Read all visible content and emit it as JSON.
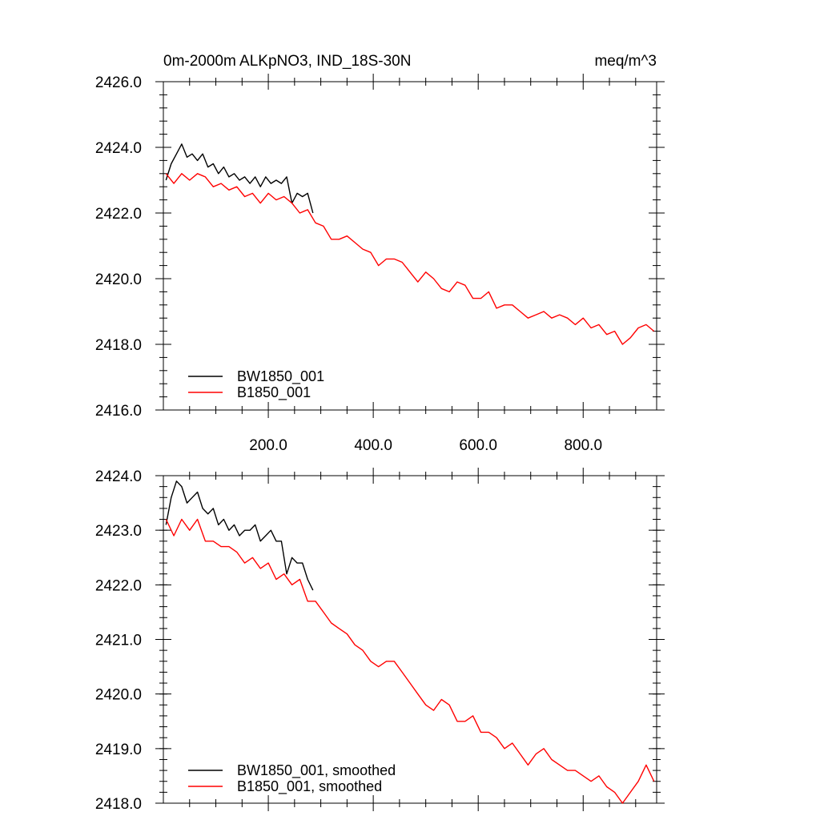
{
  "chart_data": [
    {
      "type": "line",
      "title": "0m-2000m ALKpNO3, IND_18S-30N",
      "units": "meq/m^3",
      "xlim": [
        0,
        940
      ],
      "ylim": [
        2416,
        2426
      ],
      "xticks": [
        200,
        400,
        600,
        800
      ],
      "xtick_labels": [
        "200.0",
        "400.0",
        "600.0",
        "800.0"
      ],
      "yticks": [
        2416,
        2418,
        2420,
        2422,
        2424,
        2426
      ],
      "ytick_labels": [
        "2416.0",
        "2418.0",
        "2420.0",
        "2422.0",
        "2424.0",
        "2426.0"
      ],
      "legend_position": "bottom-left",
      "series": [
        {
          "name": "BW1850_001",
          "color": "#000000",
          "x": [
            5,
            15,
            25,
            35,
            45,
            55,
            65,
            75,
            85,
            95,
            105,
            115,
            125,
            135,
            145,
            155,
            165,
            175,
            185,
            195,
            205,
            215,
            225,
            235,
            245,
            255,
            265,
            275,
            285
          ],
          "values": [
            2423.0,
            2423.5,
            2423.8,
            2424.1,
            2423.7,
            2423.8,
            2423.6,
            2423.8,
            2423.4,
            2423.5,
            2423.2,
            2423.4,
            2423.1,
            2423.2,
            2423.0,
            2423.1,
            2422.9,
            2423.1,
            2422.8,
            2423.1,
            2422.9,
            2423.0,
            2422.9,
            2423.1,
            2422.3,
            2422.6,
            2422.5,
            2422.6,
            2422.0
          ]
        },
        {
          "name": "B1850_001",
          "color": "#ff0000",
          "x": [
            5,
            20,
            35,
            50,
            65,
            80,
            95,
            110,
            125,
            140,
            155,
            170,
            185,
            200,
            215,
            230,
            245,
            260,
            275,
            290,
            305,
            320,
            335,
            350,
            365,
            380,
            395,
            410,
            425,
            440,
            455,
            470,
            485,
            500,
            515,
            530,
            545,
            560,
            575,
            590,
            605,
            620,
            635,
            650,
            665,
            680,
            695,
            710,
            725,
            740,
            755,
            770,
            785,
            800,
            815,
            830,
            845,
            860,
            875,
            890,
            905,
            920,
            935
          ],
          "values": [
            2423.2,
            2422.9,
            2423.2,
            2423.0,
            2423.2,
            2423.1,
            2422.8,
            2422.9,
            2422.7,
            2422.8,
            2422.5,
            2422.6,
            2422.3,
            2422.6,
            2422.4,
            2422.5,
            2422.3,
            2422.0,
            2422.1,
            2421.7,
            2421.6,
            2421.2,
            2421.2,
            2421.3,
            2421.1,
            2420.9,
            2420.8,
            2420.4,
            2420.6,
            2420.6,
            2420.5,
            2420.2,
            2419.9,
            2420.2,
            2420.0,
            2419.7,
            2419.6,
            2419.9,
            2419.8,
            2419.4,
            2419.4,
            2419.6,
            2419.1,
            2419.2,
            2419.2,
            2419.0,
            2418.8,
            2418.9,
            2419.0,
            2418.8,
            2418.9,
            2418.8,
            2418.6,
            2418.8,
            2418.5,
            2418.6,
            2418.3,
            2418.4,
            2418.0,
            2418.2,
            2418.5,
            2418.6,
            2418.4
          ]
        }
      ]
    },
    {
      "type": "line",
      "title": "",
      "xlim": [
        0,
        940
      ],
      "ylim": [
        2418,
        2424
      ],
      "xticks": [
        200,
        400,
        600,
        800
      ],
      "yticks": [
        2418,
        2419,
        2420,
        2421,
        2422,
        2423,
        2424
      ],
      "ytick_labels": [
        "2418.0",
        "2419.0",
        "2420.0",
        "2421.0",
        "2422.0",
        "2423.0",
        "2424.0"
      ],
      "legend_position": "bottom-left",
      "series": [
        {
          "name": "BW1850_001, smoothed",
          "color": "#000000",
          "x": [
            5,
            15,
            25,
            35,
            45,
            55,
            65,
            75,
            85,
            95,
            105,
            115,
            125,
            135,
            145,
            155,
            165,
            175,
            185,
            195,
            205,
            215,
            225,
            235,
            245,
            255,
            265,
            275,
            285
          ],
          "values": [
            2423.1,
            2423.6,
            2423.9,
            2423.8,
            2423.5,
            2423.6,
            2423.7,
            2423.4,
            2423.3,
            2423.4,
            2423.1,
            2423.2,
            2423.0,
            2423.1,
            2422.9,
            2423.0,
            2423.0,
            2423.1,
            2422.8,
            2422.9,
            2423.0,
            2422.8,
            2422.8,
            2422.2,
            2422.5,
            2422.4,
            2422.4,
            2422.1,
            2421.9
          ]
        },
        {
          "name": "B1850_001, smoothed",
          "color": "#ff0000",
          "x": [
            5,
            20,
            35,
            50,
            65,
            80,
            95,
            110,
            125,
            140,
            155,
            170,
            185,
            200,
            215,
            230,
            245,
            260,
            275,
            290,
            305,
            320,
            335,
            350,
            365,
            380,
            395,
            410,
            425,
            440,
            455,
            470,
            485,
            500,
            515,
            530,
            545,
            560,
            575,
            590,
            605,
            620,
            635,
            650,
            665,
            680,
            695,
            710,
            725,
            740,
            755,
            770,
            785,
            800,
            815,
            830,
            845,
            860,
            875,
            890,
            905,
            920,
            935
          ],
          "values": [
            2423.2,
            2422.9,
            2423.2,
            2423.0,
            2423.2,
            2422.8,
            2422.8,
            2422.7,
            2422.7,
            2422.6,
            2422.4,
            2422.5,
            2422.3,
            2422.4,
            2422.1,
            2422.2,
            2422.0,
            2422.1,
            2421.7,
            2421.7,
            2421.5,
            2421.3,
            2421.2,
            2421.1,
            2420.9,
            2420.8,
            2420.6,
            2420.5,
            2420.6,
            2420.6,
            2420.4,
            2420.2,
            2420.0,
            2419.8,
            2419.7,
            2419.9,
            2419.8,
            2419.5,
            2419.5,
            2419.6,
            2419.3,
            2419.3,
            2419.2,
            2419.0,
            2419.1,
            2418.9,
            2418.7,
            2418.9,
            2419.0,
            2418.8,
            2418.7,
            2418.6,
            2418.6,
            2418.5,
            2418.4,
            2418.5,
            2418.3,
            2418.2,
            2418.0,
            2418.2,
            2418.4,
            2418.7,
            2418.4
          ]
        }
      ]
    }
  ]
}
